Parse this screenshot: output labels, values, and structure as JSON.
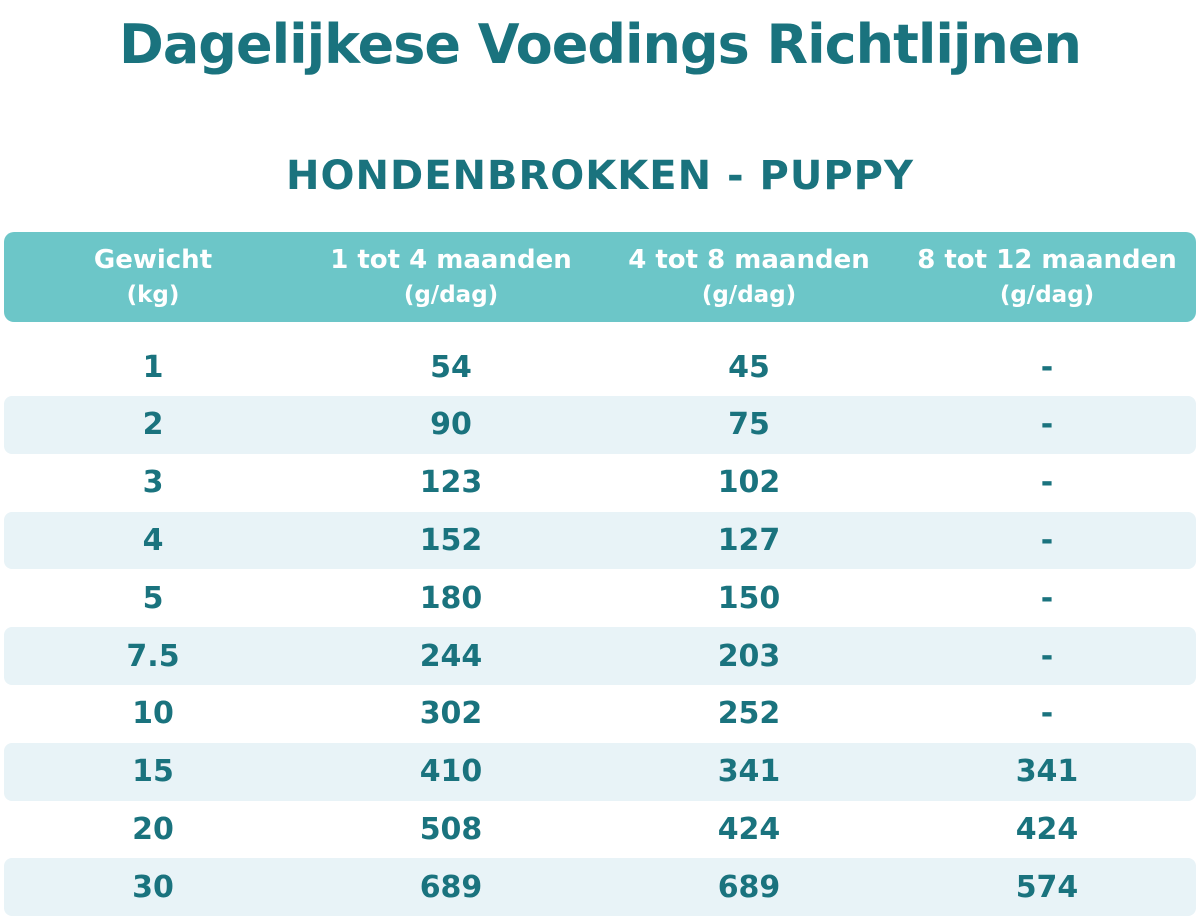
{
  "title": "Dagelijkese Voedings Richtlijnen",
  "subtitle": "HONDENBROKKEN - PUPPY",
  "colors": {
    "teal_text": "#1a737e",
    "header_bg": "#6cc6c8",
    "header_text": "#ffffff",
    "stripe_bg": "#e8f3f7",
    "page_bg": "#ffffff"
  },
  "table": {
    "headers": [
      {
        "label": "Gewicht",
        "sub": "(kg)"
      },
      {
        "label": "1 tot 4 maanden",
        "sub": "(g/dag)"
      },
      {
        "label": "4 tot 8 maanden",
        "sub": "(g/dag)"
      },
      {
        "label": "8 tot 12 maanden",
        "sub": "(g/dag)"
      }
    ],
    "rows": [
      [
        "1",
        "54",
        "45",
        "-"
      ],
      [
        "2",
        "90",
        "75",
        "-"
      ],
      [
        "3",
        "123",
        "102",
        "-"
      ],
      [
        "4",
        "152",
        "127",
        "-"
      ],
      [
        "5",
        "180",
        "150",
        "-"
      ],
      [
        "7.5",
        "244",
        "203",
        "-"
      ],
      [
        "10",
        "302",
        "252",
        "-"
      ],
      [
        "15",
        "410",
        "341",
        "341"
      ],
      [
        "20",
        "508",
        "424",
        "424"
      ],
      [
        "30",
        "689",
        "689",
        "574"
      ]
    ]
  },
  "chart_data": {
    "type": "table",
    "title": "Dagelijkese Voedings Richtlijnen",
    "subtitle": "HONDENBROKKEN - PUPPY",
    "columns": [
      "Gewicht (kg)",
      "1 tot 4 maanden (g/dag)",
      "4 tot 8 maanden (g/dag)",
      "8 tot 12 maanden (g/dag)"
    ],
    "rows": [
      [
        1,
        54,
        45,
        null
      ],
      [
        2,
        90,
        75,
        null
      ],
      [
        3,
        123,
        102,
        null
      ],
      [
        4,
        152,
        127,
        null
      ],
      [
        5,
        180,
        150,
        null
      ],
      [
        7.5,
        244,
        203,
        null
      ],
      [
        10,
        302,
        252,
        null
      ],
      [
        15,
        410,
        341,
        341
      ],
      [
        20,
        508,
        424,
        424
      ],
      [
        30,
        689,
        689,
        574
      ]
    ]
  }
}
